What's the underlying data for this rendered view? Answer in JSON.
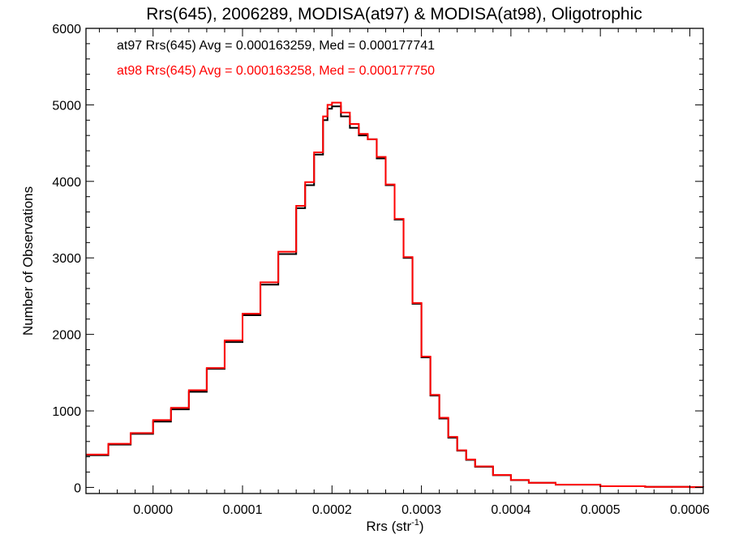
{
  "chart_data": {
    "type": "line",
    "title": "Rrs(645), 2006289, MODISA(at97) & MODISA(at98), Oligotrophic",
    "xlabel_main": "Rrs (str",
    "xlabel_sup": "-1",
    "xlabel_end": ")",
    "ylabel": "Number of Observations",
    "xlim": [
      -7.5e-05,
      0.000615
    ],
    "ylim": [
      -80,
      6000
    ],
    "x_ticks": [
      0.0,
      0.0001,
      0.0002,
      0.0003,
      0.0004,
      0.0005,
      0.0006
    ],
    "x_tick_labels": [
      "0.0000",
      "0.0001",
      "0.0002",
      "0.0003",
      "0.0004",
      "0.0005",
      "0.0006"
    ],
    "y_ticks": [
      0,
      1000,
      2000,
      3000,
      4000,
      5000,
      6000
    ],
    "y_tick_labels": [
      "0",
      "1000",
      "2000",
      "3000",
      "4000",
      "5000",
      "6000"
    ],
    "grid": false,
    "legend_position": "top-left",
    "series": [
      {
        "name": "at97",
        "color": "#000000",
        "label": "at97 Rrs(645) Avg = 0.000163259, Med = 0.000177741",
        "x": [
          -7.5e-05,
          -5e-05,
          -2.5e-05,
          0.0,
          2e-05,
          4e-05,
          6e-05,
          8e-05,
          0.0001,
          0.00012,
          0.00014,
          0.00016,
          0.00017,
          0.00018,
          0.00019,
          0.000195,
          0.0002,
          0.00021,
          0.00022,
          0.00023,
          0.00024,
          0.00025,
          0.00026,
          0.00027,
          0.00028,
          0.00029,
          0.0003,
          0.00031,
          0.00032,
          0.00033,
          0.00034,
          0.00035,
          0.00036,
          0.00038,
          0.0004,
          0.00042,
          0.00045,
          0.0005,
          0.00055,
          0.0006,
          0.000615
        ],
        "y": [
          420,
          560,
          700,
          860,
          1020,
          1250,
          1550,
          1900,
          2250,
          2650,
          3050,
          3650,
          3950,
          4350,
          4800,
          4950,
          4980,
          4850,
          4700,
          4600,
          4550,
          4300,
          3950,
          3500,
          3000,
          2400,
          1700,
          1200,
          900,
          650,
          480,
          360,
          270,
          160,
          95,
          60,
          35,
          15,
          7,
          3,
          2
        ]
      },
      {
        "name": "at98",
        "color": "#ff0000",
        "label": "at98 Rrs(645) Avg = 0.000163258, Med = 0.000177750",
        "x": [
          -7.5e-05,
          -5e-05,
          -2.5e-05,
          0.0,
          2e-05,
          4e-05,
          6e-05,
          8e-05,
          0.0001,
          0.00012,
          0.00014,
          0.00016,
          0.00017,
          0.00018,
          0.00019,
          0.000195,
          0.0002,
          0.00021,
          0.00022,
          0.00023,
          0.00024,
          0.00025,
          0.00026,
          0.00027,
          0.00028,
          0.00029,
          0.0003,
          0.00031,
          0.00032,
          0.00033,
          0.00034,
          0.00035,
          0.00036,
          0.00038,
          0.0004,
          0.00042,
          0.00045,
          0.0005,
          0.00055,
          0.0006,
          0.000615
        ],
        "y": [
          430,
          570,
          710,
          880,
          1040,
          1270,
          1560,
          1920,
          2270,
          2680,
          3080,
          3680,
          3990,
          4380,
          4850,
          5000,
          5030,
          4900,
          4750,
          4620,
          4550,
          4320,
          3960,
          3510,
          3010,
          2410,
          1710,
          1210,
          910,
          660,
          485,
          365,
          275,
          162,
          97,
          61,
          36,
          16,
          8,
          4,
          3
        ]
      }
    ]
  }
}
